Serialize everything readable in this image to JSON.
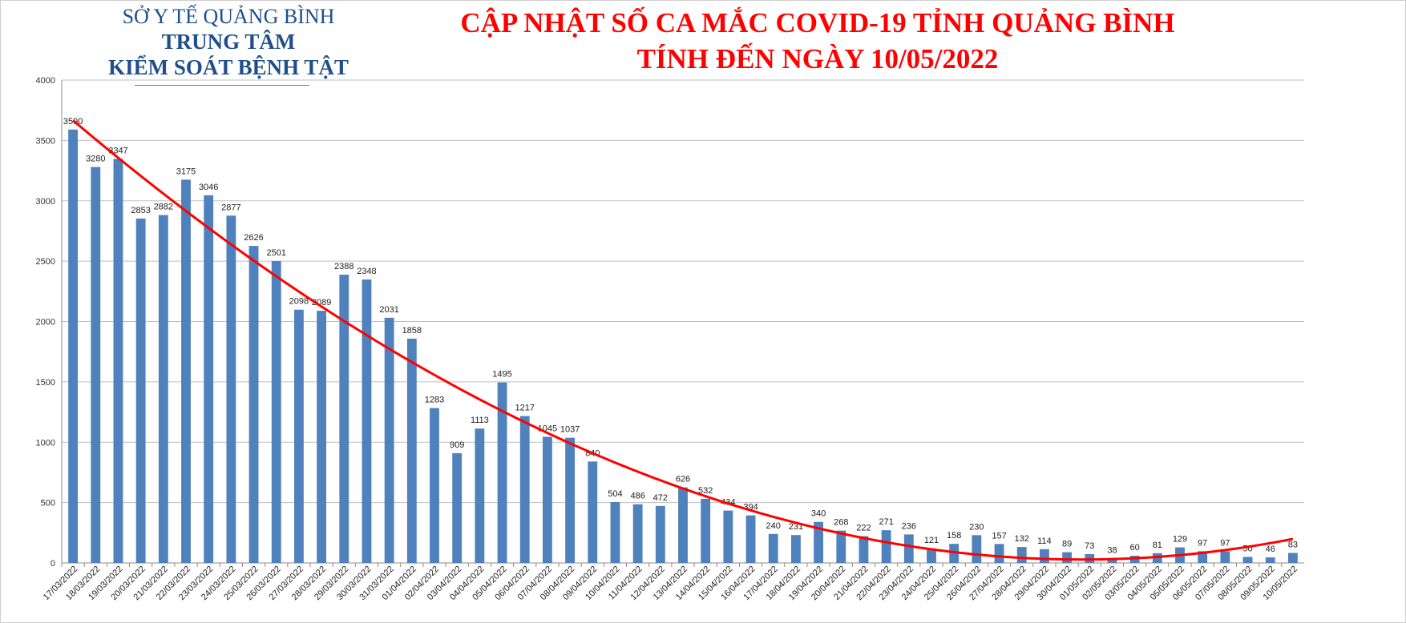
{
  "header": {
    "org_line1": "SỞ Y TẾ QUẢNG BÌNH",
    "org_line2": "TRUNG TÂM",
    "org_line3": "KIỂM SOÁT BỆNH TẬT",
    "title_line1": "CẬP NHẬT SỐ CA MẮC COVID-19 TỈNH QUẢNG BÌNH",
    "title_line2": "TÍNH ĐẾN NGÀY 10/05/2022"
  },
  "chart_data": {
    "type": "bar",
    "title": "CẬP NHẬT SỐ CA MẮC COVID-19 TỈNH QUẢNG BÌNH TÍNH ĐẾN NGÀY 10/05/2022",
    "xlabel": "",
    "ylabel": "",
    "ylim": [
      0,
      4000
    ],
    "yticks": [
      0,
      500,
      1000,
      1500,
      2000,
      2500,
      3000,
      3500,
      4000
    ],
    "grid": true,
    "trendline": true,
    "colors": {
      "bar": "#4f81bd",
      "trend": "#ff0000",
      "grid": "#bfbfbf"
    },
    "categories": [
      "17/03/2022",
      "18/03/2022",
      "19/03/2022",
      "20/03/2022",
      "21/03/2022",
      "22/03/2022",
      "23/03/2022",
      "24/03/2022",
      "25/03/2022",
      "26/03/2022",
      "27/03/2022",
      "28/03/2022",
      "29/03/2022",
      "30/03/2022",
      "31/03/2022",
      "01/04/2022",
      "02/04/2022",
      "03/04/2022",
      "04/04/2022",
      "05/04/2022",
      "06/04/2022",
      "07/04/2022",
      "08/04/2022",
      "09/04/2022",
      "10/04/2022",
      "11/04/2022",
      "12/04/2022",
      "13/04/2022",
      "14/04/2022",
      "15/04/2022",
      "16/04/2022",
      "17/04/2022",
      "18/04/2022",
      "19/04/2022",
      "20/04/2022",
      "21/04/2022",
      "22/04/2022",
      "23/04/2022",
      "24/04/2022",
      "25/04/2022",
      "26/04/2022",
      "27/04/2022",
      "28/04/2022",
      "29/04/2022",
      "30/04/2022",
      "01/05/2022",
      "02/05/2022",
      "03/05/2022",
      "04/05/2022",
      "05/05/2022",
      "06/05/2022",
      "07/05/2022",
      "08/05/2022",
      "09/05/2022",
      "10/05/2022"
    ],
    "values": [
      3590,
      3280,
      3347,
      2853,
      2882,
      3175,
      3046,
      2877,
      2626,
      2501,
      2098,
      2089,
      2388,
      2348,
      2031,
      1858,
      1283,
      909,
      1113,
      1495,
      1217,
      1045,
      1037,
      840,
      504,
      486,
      472,
      626,
      532,
      434,
      394,
      240,
      231,
      340,
      268,
      222,
      271,
      236,
      121,
      158,
      230,
      157,
      132,
      114,
      89,
      73,
      38,
      60,
      81,
      129,
      97,
      97,
      50,
      46,
      83
    ]
  }
}
